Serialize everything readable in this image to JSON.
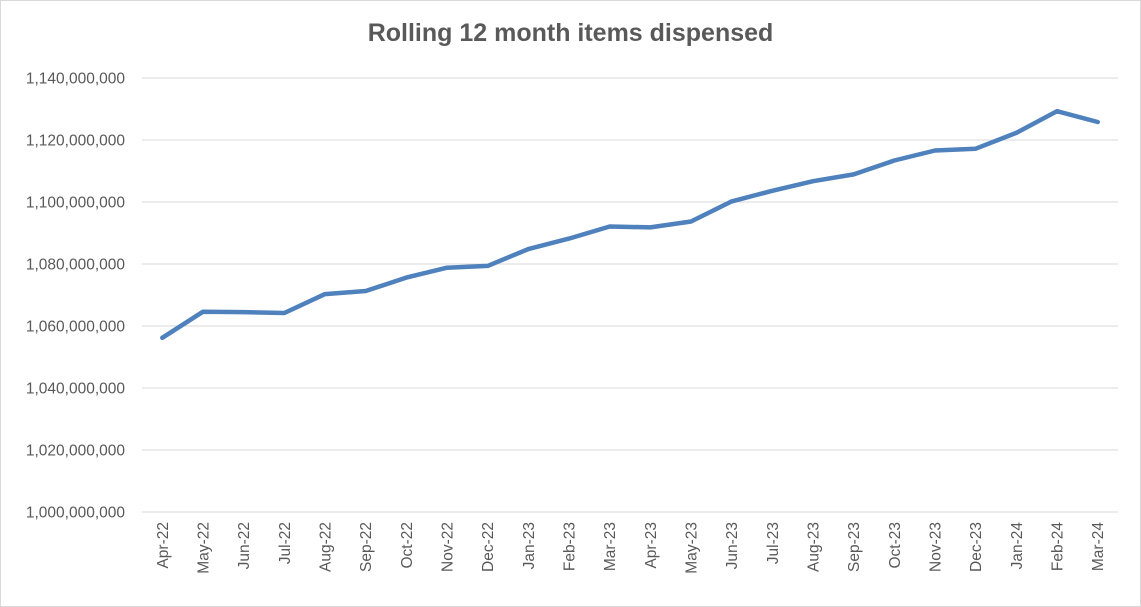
{
  "chart_data": {
    "type": "line",
    "title": "Rolling 12 month items dispensed",
    "xlabel": "",
    "ylabel": "",
    "categories": [
      "Apr-22",
      "May-22",
      "Jun-22",
      "Jul-22",
      "Aug-22",
      "Sep-22",
      "Oct-22",
      "Nov-22",
      "Dec-22",
      "Jan-23",
      "Feb-23",
      "Mar-23",
      "Apr-23",
      "May-23",
      "Jun-23",
      "Jul-23",
      "Aug-23",
      "Sep-23",
      "Oct-23",
      "Nov-23",
      "Dec-23",
      "Jan-24",
      "Feb-24",
      "Mar-24"
    ],
    "series": [
      {
        "values": [
          1056200000,
          1064600000,
          1064500000,
          1064200000,
          1070300000,
          1071300000,
          1075600000,
          1078800000,
          1079400000,
          1084800000,
          1088200000,
          1092100000,
          1091800000,
          1093700000,
          1100200000,
          1103600000,
          1106700000,
          1108900000,
          1113400000,
          1116600000,
          1117200000,
          1122300000,
          1129300000,
          1125800000
        ],
        "color": "#4f81bd"
      }
    ],
    "ylim": [
      1000000000,
      1140000000
    ],
    "yticks": [
      {
        "value": 1000000000,
        "label": "1,000,000,000"
      },
      {
        "value": 1020000000,
        "label": "1,020,000,000"
      },
      {
        "value": 1040000000,
        "label": "1,040,000,000"
      },
      {
        "value": 1060000000,
        "label": "1,060,000,000"
      },
      {
        "value": 1080000000,
        "label": "1,080,000,000"
      },
      {
        "value": 1100000000,
        "label": "1,100,000,000"
      },
      {
        "value": 1120000000,
        "label": "1,120,000,000"
      },
      {
        "value": 1140000000,
        "label": "1,140,000,000"
      }
    ],
    "grid": true,
    "legend": "none"
  }
}
